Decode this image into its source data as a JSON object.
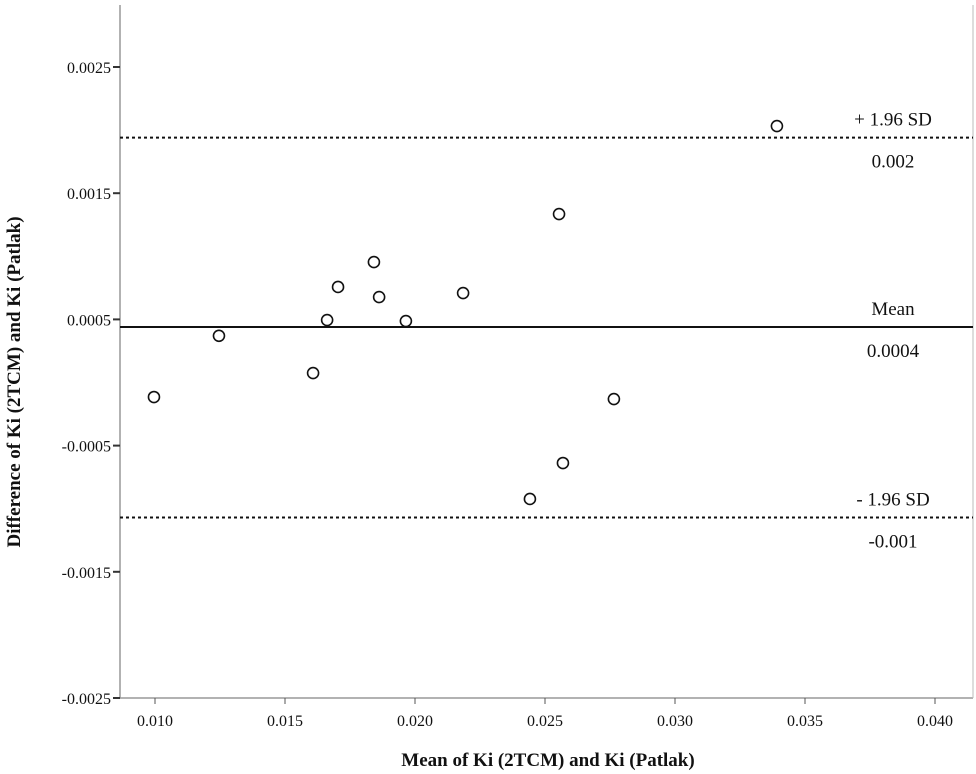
{
  "chart_data": {
    "type": "scatter",
    "title": "",
    "xlabel": "Mean of Ki (2TCM) and Ki (Patlak)",
    "ylabel": "Difference of Ki (2TCM) and Ki (Patlak)",
    "xlim": [
      0.0086,
      0.0414
    ],
    "ylim": [
      -0.0025,
      0.0025
    ],
    "x_ticks": [
      "0.010",
      "0.015",
      "0.020",
      "0.025",
      "0.030",
      "0.035",
      "0.040"
    ],
    "y_ticks": [
      "0.0025",
      "0.0015",
      "0.0005",
      "-0.0005",
      "-0.0015",
      "-0.0025"
    ],
    "grid": false,
    "points": [
      {
        "x": 0.00996,
        "y": -0.000115
      },
      {
        "x": 0.01246,
        "y": 0.00037
      },
      {
        "x": 0.01608,
        "y": 7.5e-05
      },
      {
        "x": 0.01662,
        "y": 0.000495
      },
      {
        "x": 0.01704,
        "y": 0.000757
      },
      {
        "x": 0.01842,
        "y": 0.000954
      },
      {
        "x": 0.01862,
        "y": 0.000677
      },
      {
        "x": 0.01965,
        "y": 0.000487
      },
      {
        "x": 0.02185,
        "y": 0.000709
      },
      {
        "x": 0.02554,
        "y": 0.001335
      },
      {
        "x": 0.02765,
        "y": -0.000131
      },
      {
        "x": 0.02569,
        "y": -0.000638
      },
      {
        "x": 0.02442,
        "y": -0.000923
      },
      {
        "x": 0.03392,
        "y": 0.002032
      }
    ],
    "reference_lines": [
      {
        "name": "upper-loa",
        "value": 0.00194,
        "style": "dotted",
        "label": "+ 1.96 SD",
        "value_label": "0.002"
      },
      {
        "name": "mean",
        "value": 0.00044,
        "style": "solid",
        "label": "Mean",
        "value_label": "0.0004"
      },
      {
        "name": "lower-loa",
        "value": -0.00107,
        "style": "dotted",
        "label": "- 1.96 SD",
        "value_label": "-0.001"
      }
    ]
  }
}
